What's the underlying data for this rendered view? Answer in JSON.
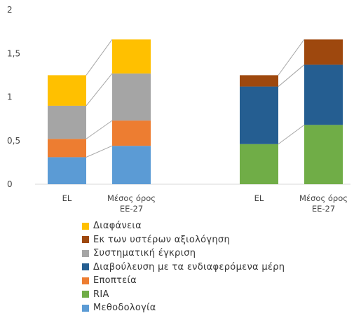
{
  "chart_data": {
    "type": "bar",
    "stacked": true,
    "title": "",
    "xlabel": "",
    "ylabel": "",
    "ylim": [
      0,
      2
    ],
    "yticks": [
      "0",
      "0,5",
      "1",
      "1,5",
      "2"
    ],
    "ytick_values": [
      0,
      0.5,
      1,
      1.5,
      2
    ],
    "groups": [
      {
        "categories": [
          "EL",
          "Μέσος όρος ΕΕ-27"
        ],
        "series": [
          {
            "name": "Μεθοδολογία",
            "color": "#5B9BD5",
            "values": [
              0.31,
              0.44
            ]
          },
          {
            "name": "Εποπτεία",
            "color": "#ED7D31",
            "values": [
              0.21,
              0.29
            ]
          },
          {
            "name": "Συστηματική έγκριση",
            "color": "#A5A5A5",
            "values": [
              0.38,
              0.54
            ]
          },
          {
            "name": "Διαφάνεια",
            "color": "#FFC000",
            "values": [
              0.35,
              0.39
            ]
          }
        ]
      },
      {
        "categories": [
          "EL",
          "Μέσος όρος ΕΕ-27"
        ],
        "series": [
          {
            "name": "RIA",
            "color": "#70AD47",
            "values": [
              0.46,
              0.68
            ]
          },
          {
            "name": "Διαβούλευση με τα ενδιαφερόμενα μέρη",
            "color": "#255E91",
            "values": [
              0.66,
              0.69
            ]
          },
          {
            "name": "Εκ των υστέρων αξιολόγηση",
            "color": "#9E480E",
            "values": [
              0.13,
              0.29
            ]
          }
        ]
      }
    ],
    "legend_position": "bottom",
    "legend": [
      {
        "label": "Διαφάνεια",
        "color": "#FFC000"
      },
      {
        "label": "Εκ των υστέρων αξιολόγηση",
        "color": "#9E480E"
      },
      {
        "label": "Συστηματική έγκριση",
        "color": "#A5A5A5"
      },
      {
        "label": "Διαβούλευση με τα ενδιαφερόμενα μέρη",
        "color": "#255E91"
      },
      {
        "label": "Εποπτεία",
        "color": "#ED7D31"
      },
      {
        "label": "RIA",
        "color": "#70AD47"
      },
      {
        "label": "Μεθοδολογία",
        "color": "#5B9BD5"
      }
    ]
  }
}
